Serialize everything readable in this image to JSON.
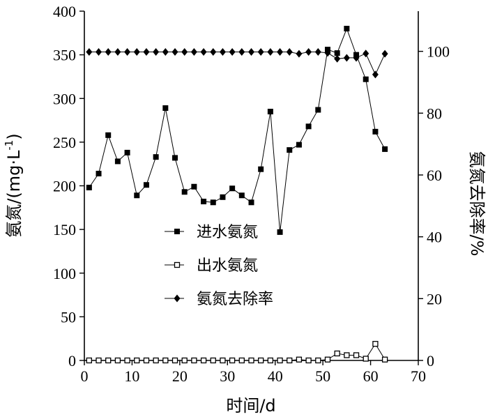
{
  "chart_data": {
    "type": "line",
    "xlabel": "时间/d",
    "ylabel_left": "氨氮/(mg·L",
    "ylabel_left_sup": "-1",
    "ylabel_left_close": ")",
    "ylabel_right": "氨氮去除率/%",
    "xlim": [
      0,
      70
    ],
    "ylim_left": [
      0,
      400
    ],
    "ylim_right": [
      0,
      113
    ],
    "xticks": [
      0,
      10,
      20,
      30,
      40,
      50,
      60,
      70
    ],
    "yticks_left": [
      0,
      50,
      100,
      150,
      200,
      250,
      300,
      350,
      400
    ],
    "yticks_right": [
      0,
      20,
      40,
      60,
      80,
      100
    ],
    "grid": false,
    "legend_position": "center",
    "x": [
      1,
      3,
      5,
      7,
      9,
      11,
      13,
      15,
      17,
      19,
      21,
      23,
      25,
      27,
      29,
      31,
      33,
      35,
      37,
      39,
      41,
      43,
      45,
      47,
      49,
      51,
      53,
      55,
      57,
      59,
      61,
      63
    ],
    "series": [
      {
        "name": "进水氨氮",
        "axis": "left",
        "marker": "filled-square",
        "values": [
          198,
          214,
          258,
          228,
          238,
          189,
          201,
          233,
          289,
          232,
          193,
          199,
          182,
          181,
          187,
          197,
          189,
          181,
          219,
          285,
          147,
          241,
          247,
          268,
          287,
          356,
          352,
          380,
          350,
          322,
          262,
          242
        ]
      },
      {
        "name": "出水氨氮",
        "axis": "left",
        "marker": "open-square",
        "values": [
          0,
          0,
          0,
          0,
          0,
          0,
          0,
          0,
          0,
          0,
          0,
          0,
          0,
          0,
          0,
          0,
          0,
          0,
          0,
          0,
          0,
          0,
          1,
          0,
          0,
          1,
          8,
          6,
          6,
          2,
          19,
          1
        ]
      },
      {
        "name": "氨氮去除率",
        "axis": "right",
        "marker": "filled-diamond",
        "values": [
          99.8,
          99.8,
          99.8,
          99.8,
          99.8,
          99.8,
          99.8,
          99.8,
          99.8,
          99.8,
          99.8,
          99.8,
          99.8,
          99.8,
          99.8,
          99.8,
          99.8,
          99.8,
          99.8,
          99.8,
          99.8,
          99.8,
          99.2,
          99.8,
          99.8,
          99.5,
          97.6,
          97.9,
          97.9,
          99.3,
          92.5,
          99.2
        ]
      }
    ]
  }
}
